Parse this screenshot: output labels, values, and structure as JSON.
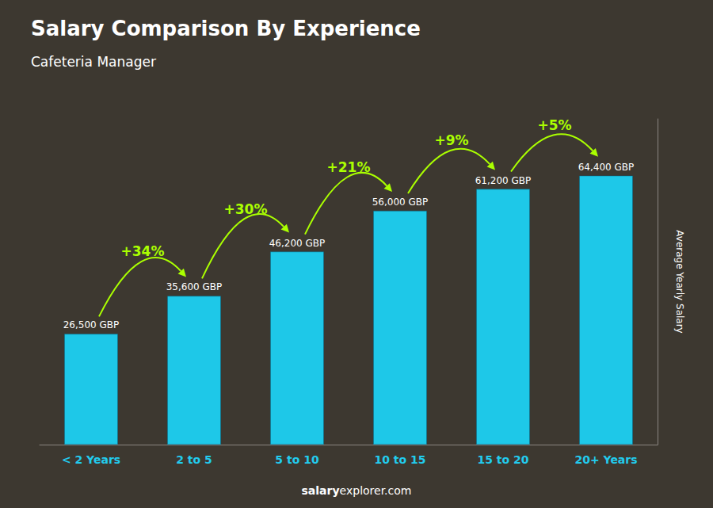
{
  "chart_data": {
    "type": "bar",
    "title": "Salary Comparison By Experience",
    "subtitle": "Cafeteria Manager",
    "categories": [
      "< 2 Years",
      "2 to 5",
      "5 to 10",
      "10 to 15",
      "15 to 20",
      "20+ Years"
    ],
    "values": [
      26500,
      35600,
      46200,
      56000,
      61200,
      64400
    ],
    "value_labels": [
      "26,500 GBP",
      "35,600 GBP",
      "46,200 GBP",
      "56,000 GBP",
      "61,200 GBP",
      "64,400 GBP"
    ],
    "data_labels": true,
    "color": "#1EC8E8",
    "ylabel": "Average Yearly Salary",
    "ylim": [
      0,
      78000
    ],
    "tick_labels": "x",
    "grid": false,
    "annotations": [
      "+34%",
      "+30%",
      "+21%",
      "+9%",
      "+5%"
    ],
    "footer": [
      "salary",
      "explorer.com"
    ]
  }
}
